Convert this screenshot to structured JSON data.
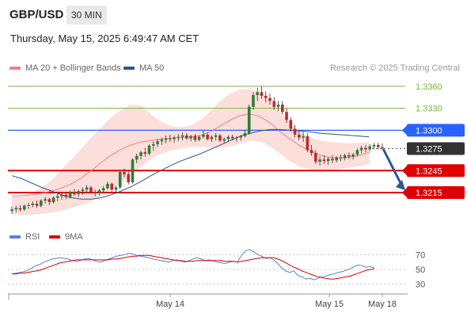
{
  "header": {
    "pair": "GBP/USD",
    "timeframe": "30 MIN",
    "timestamp": "Thursday, May 15, 2025 6:49:47 AM CET"
  },
  "legend": {
    "ma20": "MA 20 + Bollinger Bands",
    "ma50": "MA 50",
    "ma20_color": "#f08080",
    "ma50_color": "#2b5797",
    "credit": "Research © 2025 Trading Central"
  },
  "rsi_legend": {
    "rsi": "RSI",
    "ma9": "9MA",
    "rsi_color": "#5b7fd6",
    "ma9_color": "#e00000"
  },
  "chart_data": [
    {
      "type": "candlestick",
      "ylim": [
        1.3175,
        1.3375
      ],
      "x_ticks": [
        "May 14",
        "May 15",
        "May 18"
      ],
      "levels": [
        {
          "label": "1.3360",
          "value": 1.336,
          "kind": "resistance",
          "color": "#7cb342"
        },
        {
          "label": "1.3330",
          "value": 1.333,
          "kind": "resistance",
          "color": "#7cb342"
        },
        {
          "label": "1.3300",
          "value": 1.33,
          "kind": "pivot",
          "color": "#2962ff"
        },
        {
          "label": "1.3275",
          "value": 1.3275,
          "kind": "last",
          "color": "#333333"
        },
        {
          "label": "1.3245",
          "value": 1.3245,
          "kind": "support",
          "color": "#e00000"
        },
        {
          "label": "1.3215",
          "value": 1.3215,
          "kind": "support",
          "color": "#e00000"
        }
      ],
      "ohlc": [
        [
          1.319,
          1.3196,
          1.3186,
          1.3192
        ],
        [
          1.3192,
          1.3197,
          1.3188,
          1.3194
        ],
        [
          1.3194,
          1.3198,
          1.3189,
          1.3192
        ],
        [
          1.3192,
          1.3199,
          1.319,
          1.3197
        ],
        [
          1.3197,
          1.3201,
          1.3193,
          1.3198
        ],
        [
          1.3198,
          1.3203,
          1.3195,
          1.32
        ],
        [
          1.32,
          1.3204,
          1.3194,
          1.3197
        ],
        [
          1.3197,
          1.3206,
          1.3195,
          1.3204
        ],
        [
          1.3204,
          1.3209,
          1.32,
          1.3206
        ],
        [
          1.3206,
          1.3208,
          1.3198,
          1.3202
        ],
        [
          1.3202,
          1.321,
          1.32,
          1.3208
        ],
        [
          1.3208,
          1.3214,
          1.3203,
          1.321
        ],
        [
          1.321,
          1.3215,
          1.3205,
          1.3212
        ],
        [
          1.3212,
          1.3214,
          1.3206,
          1.3209
        ],
        [
          1.3209,
          1.3218,
          1.3207,
          1.3216
        ],
        [
          1.3216,
          1.322,
          1.321,
          1.3213
        ],
        [
          1.3213,
          1.3219,
          1.3209,
          1.3217
        ],
        [
          1.3217,
          1.3222,
          1.3212,
          1.3219
        ],
        [
          1.3219,
          1.3225,
          1.3215,
          1.3222
        ],
        [
          1.3222,
          1.3224,
          1.3214,
          1.3216
        ],
        [
          1.3216,
          1.3219,
          1.321,
          1.3214
        ],
        [
          1.3214,
          1.322,
          1.3211,
          1.3218
        ],
        [
          1.3218,
          1.3224,
          1.3216,
          1.3221
        ],
        [
          1.3221,
          1.323,
          1.3219,
          1.3227
        ],
        [
          1.3227,
          1.3229,
          1.3215,
          1.3219
        ],
        [
          1.3219,
          1.3224,
          1.3214,
          1.3222
        ],
        [
          1.3222,
          1.3245,
          1.322,
          1.3243
        ],
        [
          1.3243,
          1.3248,
          1.3236,
          1.324
        ],
        [
          1.324,
          1.3244,
          1.3226,
          1.3229
        ],
        [
          1.3229,
          1.3262,
          1.3227,
          1.326
        ],
        [
          1.326,
          1.3268,
          1.3255,
          1.3265
        ],
        [
          1.3265,
          1.3272,
          1.326,
          1.327
        ],
        [
          1.327,
          1.3276,
          1.3264,
          1.3268
        ],
        [
          1.3268,
          1.3281,
          1.3266,
          1.3279
        ],
        [
          1.3279,
          1.3285,
          1.3272,
          1.3281
        ],
        [
          1.3281,
          1.3288,
          1.3277,
          1.3285
        ],
        [
          1.3285,
          1.329,
          1.328,
          1.3287
        ],
        [
          1.3287,
          1.3293,
          1.3282,
          1.3289
        ],
        [
          1.3289,
          1.3294,
          1.3284,
          1.3288
        ],
        [
          1.3288,
          1.3293,
          1.3283,
          1.329
        ],
        [
          1.329,
          1.3295,
          1.3285,
          1.3291
        ],
        [
          1.3291,
          1.3297,
          1.3286,
          1.3293
        ],
        [
          1.3293,
          1.3296,
          1.3287,
          1.3289
        ],
        [
          1.3289,
          1.3294,
          1.3285,
          1.3292
        ],
        [
          1.3292,
          1.3295,
          1.3284,
          1.3287
        ],
        [
          1.3287,
          1.3293,
          1.3285,
          1.3291
        ],
        [
          1.3291,
          1.33,
          1.3289,
          1.3294
        ],
        [
          1.3294,
          1.3297,
          1.3286,
          1.3288
        ],
        [
          1.3288,
          1.3293,
          1.3284,
          1.3291
        ],
        [
          1.3291,
          1.3296,
          1.3286,
          1.3293
        ],
        [
          1.3293,
          1.3295,
          1.3284,
          1.3286
        ],
        [
          1.3286,
          1.329,
          1.3282,
          1.3288
        ],
        [
          1.3288,
          1.3293,
          1.3285,
          1.3291
        ],
        [
          1.3291,
          1.3294,
          1.3286,
          1.3289
        ],
        [
          1.3289,
          1.3292,
          1.3284,
          1.329
        ],
        [
          1.329,
          1.3294,
          1.3286,
          1.3292
        ],
        [
          1.3292,
          1.33,
          1.329,
          1.3296
        ],
        [
          1.3296,
          1.3335,
          1.3294,
          1.3332
        ],
        [
          1.3332,
          1.3352,
          1.3328,
          1.3348
        ],
        [
          1.3348,
          1.3358,
          1.334,
          1.3352
        ],
        [
          1.3352,
          1.336,
          1.3343,
          1.3347
        ],
        [
          1.3347,
          1.3353,
          1.3338,
          1.3344
        ],
        [
          1.3344,
          1.335,
          1.3335,
          1.334
        ],
        [
          1.334,
          1.3345,
          1.3328,
          1.3332
        ],
        [
          1.3332,
          1.334,
          1.3326,
          1.3335
        ],
        [
          1.3335,
          1.334,
          1.3322,
          1.3325
        ],
        [
          1.3325,
          1.333,
          1.331,
          1.3314
        ],
        [
          1.3314,
          1.3318,
          1.3298,
          1.3302
        ],
        [
          1.3302,
          1.3307,
          1.329,
          1.3294
        ],
        [
          1.3294,
          1.33,
          1.3286,
          1.329
        ],
        [
          1.329,
          1.3298,
          1.3284,
          1.3292
        ],
        [
          1.3292,
          1.3296,
          1.327,
          1.3273
        ],
        [
          1.3273,
          1.328,
          1.3265,
          1.3269
        ],
        [
          1.3269,
          1.3273,
          1.3254,
          1.3257
        ],
        [
          1.3257,
          1.3264,
          1.3252,
          1.326
        ],
        [
          1.326,
          1.3266,
          1.3254,
          1.3258
        ],
        [
          1.3258,
          1.3263,
          1.3253,
          1.3261
        ],
        [
          1.3261,
          1.3266,
          1.3255,
          1.3259
        ],
        [
          1.3259,
          1.3265,
          1.3256,
          1.3263
        ],
        [
          1.3263,
          1.3267,
          1.3258,
          1.3262
        ],
        [
          1.3262,
          1.3268,
          1.3259,
          1.3266
        ],
        [
          1.3266,
          1.327,
          1.3261,
          1.3264
        ],
        [
          1.3264,
          1.3269,
          1.326,
          1.3267
        ],
        [
          1.3267,
          1.3275,
          1.3264,
          1.3273
        ],
        [
          1.3273,
          1.3279,
          1.3269,
          1.3276
        ],
        [
          1.3276,
          1.328,
          1.327,
          1.3274
        ],
        [
          1.3274,
          1.3281,
          1.3271,
          1.3278
        ],
        [
          1.3278,
          1.3283,
          1.3274,
          1.328
        ],
        [
          1.328,
          1.3283,
          1.3274,
          1.3277
        ],
        [
          1.3277,
          1.3282,
          1.3273,
          1.3275
        ]
      ],
      "ma20": [
        1.321,
        1.3211,
        1.3212,
        1.3214,
        1.3217,
        1.3221,
        1.3227,
        1.3235,
        1.3245,
        1.3256,
        1.3266,
        1.3274,
        1.328,
        1.3284,
        1.3286,
        1.3288,
        1.3289,
        1.329,
        1.3291,
        1.3293,
        1.3298,
        1.3306,
        1.3314,
        1.332,
        1.3322,
        1.3319,
        1.331,
        1.3298,
        1.3288,
        1.3279,
        1.3272,
        1.3266,
        1.3263,
        1.3262,
        1.3263,
        1.3266,
        1.327
      ],
      "ma50": [
        1.3238,
        1.3234,
        1.3228,
        1.3222,
        1.3217,
        1.3212,
        1.3208,
        1.3206,
        1.3206,
        1.3208,
        1.3212,
        1.3217,
        1.3223,
        1.323,
        1.3238,
        1.3245,
        1.3252,
        1.3258,
        1.3263,
        1.3268,
        1.3274,
        1.328,
        1.3286,
        1.3292,
        1.3296,
        1.3299,
        1.3301,
        1.3301,
        1.33,
        1.3299,
        1.3298,
        1.3296,
        1.3295,
        1.3294,
        1.3293,
        1.3292,
        1.3291
      ],
      "bb_upper": [
        1.3208,
        1.321,
        1.3214,
        1.3222,
        1.3232,
        1.3246,
        1.326,
        1.3275,
        1.329,
        1.3304,
        1.3318,
        1.3328,
        1.3335,
        1.3334,
        1.3322,
        1.3312,
        1.3306,
        1.3304,
        1.3306,
        1.3314,
        1.3326,
        1.334,
        1.335,
        1.3356,
        1.3356,
        1.3352,
        1.334,
        1.3325,
        1.331,
        1.3298,
        1.329,
        1.3286,
        1.3284,
        1.3283,
        1.3282,
        1.3283,
        1.3284
      ],
      "bb_lower": [
        1.3185,
        1.3184,
        1.3185,
        1.3186,
        1.3188,
        1.319,
        1.3194,
        1.3198,
        1.3203,
        1.321,
        1.3219,
        1.3228,
        1.3239,
        1.325,
        1.3261,
        1.3268,
        1.3272,
        1.3275,
        1.3277,
        1.3278,
        1.3276,
        1.3276,
        1.3278,
        1.3282,
        1.3286,
        1.3285,
        1.3278,
        1.3268,
        1.3258,
        1.325,
        1.3247,
        1.3246,
        1.3246,
        1.3247,
        1.3249,
        1.3251,
        1.3254
      ]
    },
    {
      "type": "line",
      "ylim": [
        20,
        80
      ],
      "y_ticks": [
        "70",
        "50",
        "30"
      ],
      "series": [
        {
          "name": "RSI",
          "values": [
            44,
            45,
            46,
            47,
            49,
            52,
            55,
            57,
            60,
            62,
            64,
            65,
            66,
            65,
            64,
            62,
            61,
            62,
            64,
            65,
            63,
            61,
            60,
            62,
            64,
            66,
            68,
            69,
            70,
            72,
            71,
            69,
            68,
            67,
            66,
            64,
            63,
            62,
            61,
            60,
            62,
            63,
            61,
            60,
            62,
            64,
            66,
            64,
            62,
            63,
            61,
            60,
            59,
            58,
            60,
            61,
            60,
            69,
            75,
            77,
            74,
            70,
            68,
            65,
            66,
            63,
            58,
            52,
            48,
            46,
            48,
            42,
            40,
            37,
            38,
            36,
            38,
            40,
            41,
            43,
            44,
            46,
            47,
            49,
            51,
            54,
            56,
            55,
            53,
            54,
            52
          ]
        },
        {
          "name": "9MA",
          "values": [
            44,
            44,
            45,
            45,
            46,
            47,
            48,
            49,
            51,
            53,
            55,
            57,
            59,
            60,
            61,
            62,
            63,
            63,
            63,
            63,
            63,
            63,
            63,
            63,
            63,
            64,
            64,
            65,
            66,
            67,
            68,
            68,
            69,
            69,
            69,
            68,
            67,
            66,
            65,
            64,
            63,
            62,
            62,
            61,
            61,
            61,
            62,
            62,
            62,
            62,
            62,
            62,
            62,
            61,
            61,
            61,
            60,
            61,
            62,
            63,
            64,
            65,
            66,
            66,
            66,
            66,
            64,
            62,
            59,
            56,
            53,
            51,
            48,
            46,
            44,
            42,
            40,
            39,
            38,
            37,
            37,
            38,
            39,
            40,
            41,
            43,
            45,
            47,
            49,
            50,
            51
          ]
        }
      ]
    }
  ]
}
